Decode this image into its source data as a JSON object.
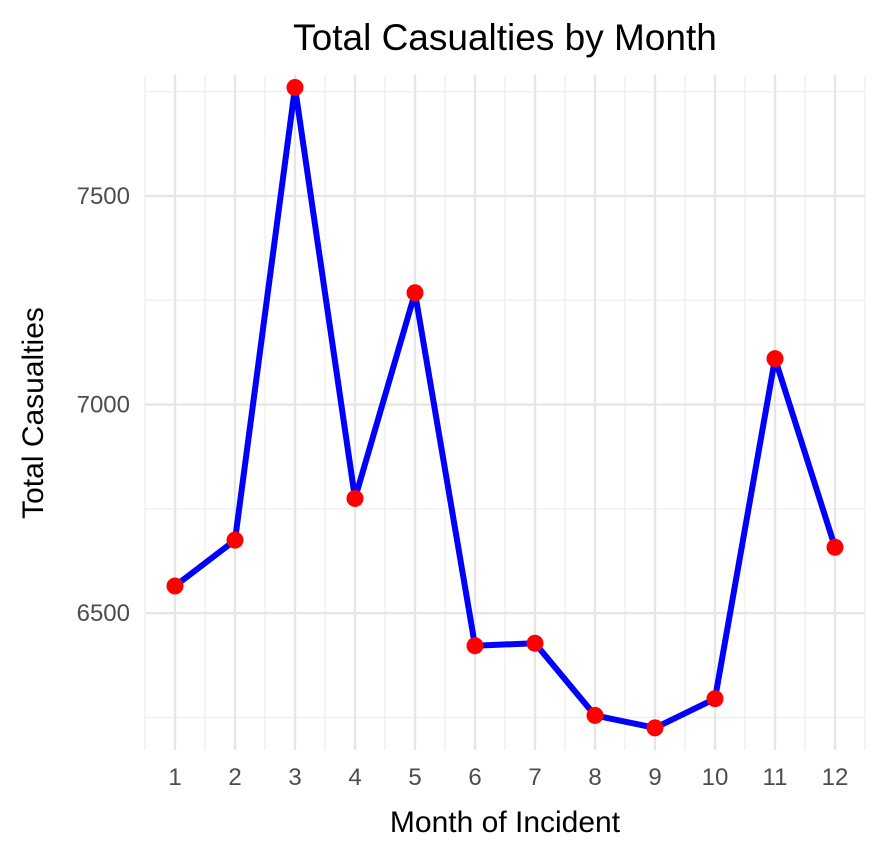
{
  "chart_data": {
    "type": "line",
    "title": "Total Casualties by Month",
    "xlabel": "Month of Incident",
    "ylabel": "Total Casualties",
    "x": [
      1,
      2,
      3,
      4,
      5,
      6,
      7,
      8,
      9,
      10,
      11,
      12
    ],
    "series": [
      {
        "values": [
          6565,
          6675,
          7760,
          6775,
          7268,
          6422,
          6428,
          6255,
          6225,
          6295,
          7110,
          6658
        ],
        "line_color": "#0000ff",
        "marker_color": "#ff0000"
      }
    ],
    "xlim": [
      0.5,
      12.5
    ],
    "ylim": [
      6172,
      7790
    ],
    "y_ticks": [
      6500,
      7000,
      7500
    ],
    "x_ticks": [
      1,
      2,
      3,
      4,
      5,
      6,
      7,
      8,
      9,
      10,
      11,
      12
    ],
    "grid": true
  }
}
